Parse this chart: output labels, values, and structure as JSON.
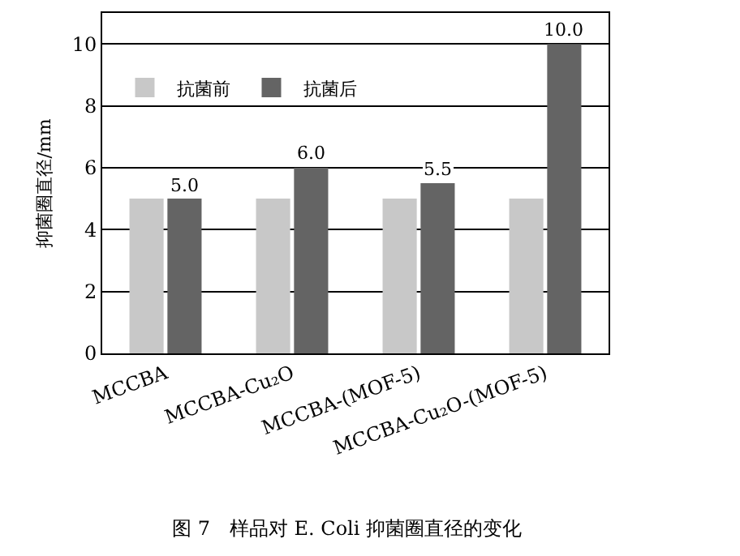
{
  "chart_data": {
    "type": "bar",
    "categories": [
      "MCCBA",
      "MCCBA-Cu₂O",
      "MCCBA-(MOF-5)",
      "MCCBA-Cu₂O-(MOF-5)"
    ],
    "series": [
      {
        "name": "抗菌前",
        "color": "#c8c8c8",
        "values": [
          5,
          5,
          5,
          5
        ]
      },
      {
        "name": "抗菌后",
        "color": "#646464",
        "values": [
          5.0,
          6.0,
          5.5,
          10.0
        ],
        "value_labels": [
          "5.0",
          "6.0",
          "5.5",
          "10.0"
        ]
      }
    ],
    "ylabel": "抑菌圈直径/mm",
    "ylim": [
      0,
      11
    ],
    "yticks": [
      0,
      2,
      4,
      6,
      8,
      10
    ],
    "grid": "y",
    "legend": "top left",
    "annotations": [
      "图 7　样品对 E. Coli 抑菌圈直径的变化"
    ]
  }
}
